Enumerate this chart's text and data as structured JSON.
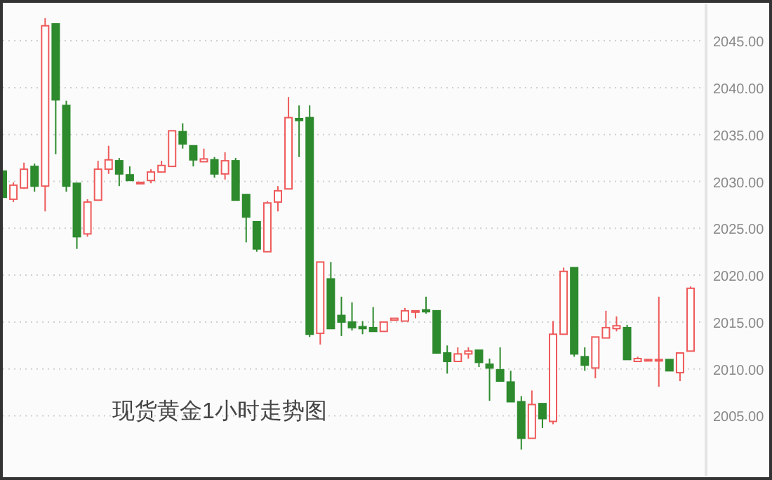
{
  "chart_data": {
    "type": "candlestick",
    "title": "现货黄金1小时走势图",
    "categories": [
      null,
      null,
      null,
      null,
      null,
      null,
      null,
      null,
      null,
      null,
      null,
      null,
      null,
      null,
      null,
      null,
      null,
      null,
      null,
      null,
      null,
      null,
      null,
      null,
      null,
      null,
      null,
      null,
      null,
      null,
      null,
      null,
      null,
      null,
      null,
      null,
      null,
      null,
      null,
      null,
      null,
      null,
      null,
      null,
      null,
      null,
      null,
      null,
      null,
      null,
      null,
      null,
      null,
      null,
      null,
      null,
      null,
      null,
      null,
      null,
      null,
      null,
      null,
      null,
      null,
      null
    ],
    "ohlc": [
      [
        2031.1,
        2031.1,
        2028.3,
        2028.3
      ],
      [
        2028.1,
        2029.9,
        2027.8,
        2029.6
      ],
      [
        2029.3,
        2032.0,
        2029.2,
        2031.3
      ],
      [
        2031.6,
        2031.9,
        2028.9,
        2029.5
      ],
      [
        2029.5,
        2047.4,
        2026.8,
        2046.6
      ],
      [
        2046.8,
        2046.8,
        2032.9,
        2038.7
      ],
      [
        2038.1,
        2038.6,
        2028.9,
        2029.5
      ],
      [
        2029.8,
        2029.8,
        2022.8,
        2024.1
      ],
      [
        2024.4,
        2028.1,
        2024.1,
        2027.8
      ],
      [
        2028.0,
        2032.2,
        2028.0,
        2031.3
      ],
      [
        2031.3,
        2033.8,
        2030.8,
        2032.3
      ],
      [
        2032.2,
        2032.5,
        2029.5,
        2030.8
      ],
      [
        2030.7,
        2031.6,
        2030.1,
        2030.1
      ],
      [
        2029.9,
        2029.9,
        2029.9,
        2029.9
      ],
      [
        2030.1,
        2031.3,
        2029.8,
        2031.0
      ],
      [
        2031.0,
        2032.2,
        2031.0,
        2031.7
      ],
      [
        2031.6,
        2035.4,
        2031.6,
        2035.4
      ],
      [
        2035.3,
        2036.2,
        2033.5,
        2034.0
      ],
      [
        2033.8,
        2033.8,
        2031.6,
        2032.3
      ],
      [
        2032.1,
        2033.5,
        2032.1,
        2032.4
      ],
      [
        2032.3,
        2032.6,
        2030.4,
        2030.8
      ],
      [
        2030.8,
        2033.1,
        2030.2,
        2032.2
      ],
      [
        2032.2,
        2032.5,
        2028.0,
        2028.0
      ],
      [
        2028.6,
        2028.6,
        2023.5,
        2026.2
      ],
      [
        2025.7,
        2025.7,
        2022.5,
        2022.8
      ],
      [
        2022.5,
        2027.9,
        2022.5,
        2027.7
      ],
      [
        2027.8,
        2029.5,
        2026.8,
        2029.0
      ],
      [
        2029.2,
        2039.0,
        2029.2,
        2036.8
      ],
      [
        2036.7,
        2038.1,
        2032.6,
        2036.5
      ],
      [
        2036.8,
        2038.1,
        2013.4,
        2013.7
      ],
      [
        2013.8,
        2021.4,
        2012.6,
        2021.4
      ],
      [
        2019.6,
        2021.4,
        2014.3,
        2014.3
      ],
      [
        2015.7,
        2017.7,
        2013.5,
        2015.0
      ],
      [
        2015.0,
        2017.1,
        2014.1,
        2014.4
      ],
      [
        2014.5,
        2015.1,
        2013.7,
        2014.3
      ],
      [
        2014.4,
        2016.6,
        2014.0,
        2014.0
      ],
      [
        2014.0,
        2015.0,
        2014.0,
        2015.0
      ],
      [
        2015.2,
        2015.4,
        2015.2,
        2015.4
      ],
      [
        2015.1,
        2016.5,
        2015.1,
        2016.2
      ],
      [
        2016.1,
        2016.2,
        2015.4,
        2016.2
      ],
      [
        2016.3,
        2017.7,
        2015.9,
        2016.1
      ],
      [
        2016.2,
        2016.2,
        2011.7,
        2011.7
      ],
      [
        2011.7,
        2012.5,
        2009.5,
        2010.8
      ],
      [
        2010.8,
        2012.3,
        2010.8,
        2011.6
      ],
      [
        2011.6,
        2012.3,
        2011.1,
        2011.9
      ],
      [
        2012.0,
        2012.0,
        2010.2,
        2010.7
      ],
      [
        2010.5,
        2011.1,
        2006.6,
        2010.1
      ],
      [
        2009.9,
        2012.3,
        2008.7,
        2008.7
      ],
      [
        2008.6,
        2009.8,
        2006.5,
        2006.5
      ],
      [
        2006.5,
        2007.1,
        2001.4,
        2002.6
      ],
      [
        2002.6,
        2007.7,
        2002.6,
        2006.2
      ],
      [
        2006.3,
        2006.3,
        2003.7,
        2004.7
      ],
      [
        2004.4,
        2015.1,
        2004.1,
        2013.7
      ],
      [
        2013.7,
        2020.8,
        2013.7,
        2020.4
      ],
      [
        2020.8,
        2020.8,
        2011.3,
        2011.6
      ],
      [
        2011.3,
        2012.3,
        2009.8,
        2010.4
      ],
      [
        2010.1,
        2013.4,
        2009.0,
        2013.4
      ],
      [
        2013.3,
        2016.2,
        2013.3,
        2014.4
      ],
      [
        2014.3,
        2015.6,
        2014.0,
        2014.6
      ],
      [
        2014.4,
        2014.7,
        2011.0,
        2011.0
      ],
      [
        2010.8,
        2011.3,
        2010.8,
        2011.1
      ],
      [
        2011.0,
        2011.0,
        2011.0,
        2011.0
      ],
      [
        2011.0,
        2017.7,
        2008.1,
        2011.0
      ],
      [
        2011.0,
        2011.0,
        2009.8,
        2009.8
      ],
      [
        2009.6,
        2011.7,
        2008.7,
        2011.7
      ],
      [
        2011.9,
        2018.8,
        2011.9,
        2018.6
      ]
    ],
    "ylim": [
      1998.6,
      2048.9
    ],
    "yticks": [
      {
        "value": 2005,
        "label": "2005.00"
      },
      {
        "value": 2010,
        "label": "2010.00"
      },
      {
        "value": 2015,
        "label": "2015.00"
      },
      {
        "value": 2020,
        "label": "2020.00"
      },
      {
        "value": 2025,
        "label": "2025.00"
      },
      {
        "value": 2030,
        "label": "2030.00"
      },
      {
        "value": 2035,
        "label": "2035.00"
      },
      {
        "value": 2040,
        "label": "2040.00"
      },
      {
        "value": 2045,
        "label": "2045.00"
      }
    ],
    "grid": "y"
  }
}
